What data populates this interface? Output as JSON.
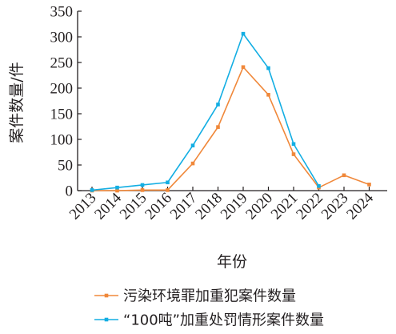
{
  "chart_data": {
    "type": "line",
    "xlabel": "年份",
    "ylabel": "案件数量/件",
    "categories": [
      "2013",
      "2014",
      "2015",
      "2016",
      "2017",
      "2018",
      "2019",
      "2020",
      "2021",
      "2022",
      "2023",
      "2024"
    ],
    "ylim": [
      0,
      350
    ],
    "yticks": [
      0,
      50,
      100,
      150,
      200,
      250,
      300,
      350
    ],
    "grid": false,
    "legend_position": "bottom",
    "series": [
      {
        "name": "污染环境罪加重犯案件数量",
        "color": "#f0883a",
        "values": [
          0,
          0,
          1,
          1,
          53,
          124,
          241,
          187,
          71,
          6,
          30,
          12
        ]
      },
      {
        "name": "“100吨”加重处罚情形案件数量",
        "color": "#13aee3",
        "values": [
          1,
          6,
          11,
          16,
          88,
          168,
          306,
          239,
          91,
          9,
          null,
          null
        ]
      }
    ]
  }
}
